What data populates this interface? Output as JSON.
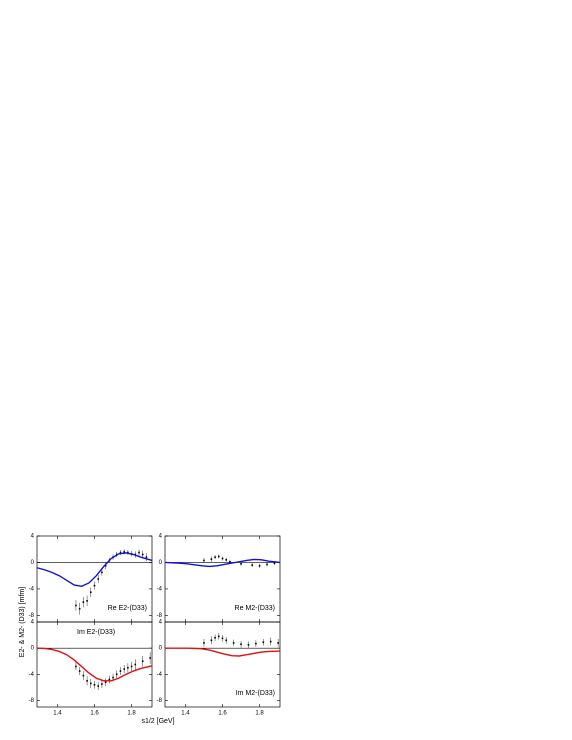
{
  "figure": {
    "ylabel": "E2- & M2- (D33) [mfm]",
    "xlabel": "s1/2 [GeV]"
  },
  "chart_data": [
    {
      "type": "line",
      "label": "Re E2-(D33)",
      "label_position": "bottom-right",
      "xlim": [
        1.29,
        1.91
      ],
      "ylim": [
        -9,
        4
      ],
      "xticks": [
        1.4,
        1.6,
        1.8
      ],
      "yticks": [
        -8,
        -4,
        0,
        4
      ],
      "show_xtick_labels": false,
      "curve": {
        "color": "#1010e0",
        "x": [
          1.29,
          1.33,
          1.37,
          1.41,
          1.45,
          1.49,
          1.53,
          1.57,
          1.61,
          1.65,
          1.69,
          1.73,
          1.77,
          1.81,
          1.85,
          1.91
        ],
        "values": [
          -0.8,
          -1.1,
          -1.5,
          -2.0,
          -2.7,
          -3.4,
          -3.6,
          -3.1,
          -2.0,
          -0.6,
          0.6,
          1.3,
          1.45,
          1.2,
          0.8,
          0.3
        ]
      },
      "data": {
        "x": [
          1.5,
          1.52,
          1.54,
          1.56,
          1.58,
          1.6,
          1.62,
          1.64,
          1.66,
          1.68,
          1.7,
          1.72,
          1.74,
          1.76,
          1.78,
          1.8,
          1.82,
          1.84,
          1.86,
          1.88
        ],
        "values": [
          -6.5,
          -7,
          -6,
          -5.8,
          -4.5,
          -3.5,
          -2.5,
          -1.5,
          -0.5,
          0.3,
          0.8,
          1.2,
          1.5,
          1.6,
          1.5,
          1.3,
          1.2,
          1.5,
          1.2,
          0.8
        ],
        "errors": [
          0.8,
          0.9,
          0.8,
          0.8,
          0.7,
          0.6,
          0.6,
          0.5,
          0.5,
          0.4,
          0.4,
          0.4,
          0.4,
          0.4,
          0.4,
          0.4,
          0.5,
          0.5,
          0.6,
          0.6
        ]
      }
    },
    {
      "type": "line",
      "label": "Re M2-(D33)",
      "label_position": "bottom-right",
      "xlim": [
        1.29,
        1.91
      ],
      "ylim": [
        -9,
        4
      ],
      "xticks": [
        1.4,
        1.6,
        1.8
      ],
      "yticks": [
        -8,
        -4,
        0,
        4
      ],
      "show_xtick_labels": false,
      "curve": {
        "color": "#1010e0",
        "x": [
          1.29,
          1.33,
          1.37,
          1.41,
          1.45,
          1.49,
          1.53,
          1.57,
          1.61,
          1.65,
          1.69,
          1.73,
          1.77,
          1.81,
          1.85,
          1.91
        ],
        "values": [
          0,
          -0.05,
          -0.1,
          -0.2,
          -0.35,
          -0.5,
          -0.6,
          -0.5,
          -0.3,
          -0.1,
          0.1,
          0.3,
          0.45,
          0.4,
          0.2,
          0
        ]
      },
      "data": {
        "x": [
          1.5,
          1.54,
          1.56,
          1.58,
          1.6,
          1.62,
          1.64,
          1.7,
          1.76,
          1.8,
          1.84,
          1.88
        ],
        "values": [
          0.3,
          0.5,
          0.8,
          0.9,
          0.6,
          0.4,
          0.1,
          -0.2,
          -0.4,
          -0.5,
          -0.3,
          -0.1
        ],
        "errors": [
          0.4,
          0.4,
          0.3,
          0.3,
          0.3,
          0.3,
          0.3,
          0.3,
          0.3,
          0.3,
          0.3,
          0.3
        ]
      }
    },
    {
      "type": "line",
      "label": "Im E2-(D33)",
      "label_position": "top-left",
      "xlim": [
        1.29,
        1.91
      ],
      "ylim": [
        -9,
        4
      ],
      "xticks": [
        1.4,
        1.6,
        1.8
      ],
      "yticks": [
        -8,
        -4,
        0,
        4
      ],
      "show_xtick_labels": true,
      "curve": {
        "color": "#e01010",
        "x": [
          1.29,
          1.33,
          1.37,
          1.41,
          1.45,
          1.49,
          1.53,
          1.57,
          1.61,
          1.65,
          1.69,
          1.73,
          1.77,
          1.81,
          1.85,
          1.91
        ],
        "values": [
          0,
          -0.05,
          -0.2,
          -0.5,
          -1.0,
          -1.8,
          -2.8,
          -3.8,
          -4.6,
          -5.0,
          -5.0,
          -4.6,
          -4.0,
          -3.5,
          -3.1,
          -2.7
        ]
      },
      "data": {
        "x": [
          1.5,
          1.52,
          1.54,
          1.56,
          1.58,
          1.6,
          1.62,
          1.64,
          1.66,
          1.68,
          1.7,
          1.72,
          1.74,
          1.76,
          1.78,
          1.8,
          1.82,
          1.86,
          1.9
        ],
        "values": [
          -2.8,
          -3.5,
          -4.2,
          -5,
          -5.4,
          -5.6,
          -5.8,
          -5.5,
          -5.2,
          -4.8,
          -4.5,
          -4,
          -3.5,
          -3.2,
          -3,
          -2.8,
          -2.5,
          -2,
          -1.5
        ],
        "errors": [
          0.6,
          0.6,
          0.7,
          0.7,
          0.7,
          0.6,
          0.6,
          0.6,
          0.6,
          0.6,
          0.6,
          0.6,
          0.6,
          0.6,
          0.7,
          0.7,
          0.8,
          0.8,
          0.9
        ]
      }
    },
    {
      "type": "line",
      "label": "Im M2-(D33)",
      "label_position": "bottom-right",
      "xlim": [
        1.29,
        1.91
      ],
      "ylim": [
        -9,
        4
      ],
      "xticks": [
        1.4,
        1.6,
        1.8
      ],
      "yticks": [
        -8,
        -4,
        0,
        4
      ],
      "show_xtick_labels": true,
      "curve": {
        "color": "#e01010",
        "x": [
          1.29,
          1.33,
          1.37,
          1.41,
          1.45,
          1.49,
          1.53,
          1.57,
          1.61,
          1.65,
          1.69,
          1.73,
          1.77,
          1.81,
          1.85,
          1.91
        ],
        "values": [
          0,
          0,
          0,
          0,
          -0.05,
          -0.1,
          -0.3,
          -0.6,
          -0.9,
          -1.15,
          -1.2,
          -1.0,
          -0.8,
          -0.6,
          -0.5,
          -0.45
        ]
      },
      "data": {
        "x": [
          1.5,
          1.54,
          1.56,
          1.58,
          1.6,
          1.62,
          1.66,
          1.7,
          1.74,
          1.78,
          1.82,
          1.86,
          1.9
        ],
        "values": [
          0.8,
          1.2,
          1.6,
          1.8,
          1.5,
          1.2,
          0.8,
          0.6,
          0.5,
          0.7,
          0.9,
          1.0,
          0.8
        ],
        "errors": [
          0.6,
          0.6,
          0.5,
          0.5,
          0.5,
          0.5,
          0.5,
          0.5,
          0.5,
          0.5,
          0.5,
          0.6,
          0.6
        ]
      }
    }
  ]
}
